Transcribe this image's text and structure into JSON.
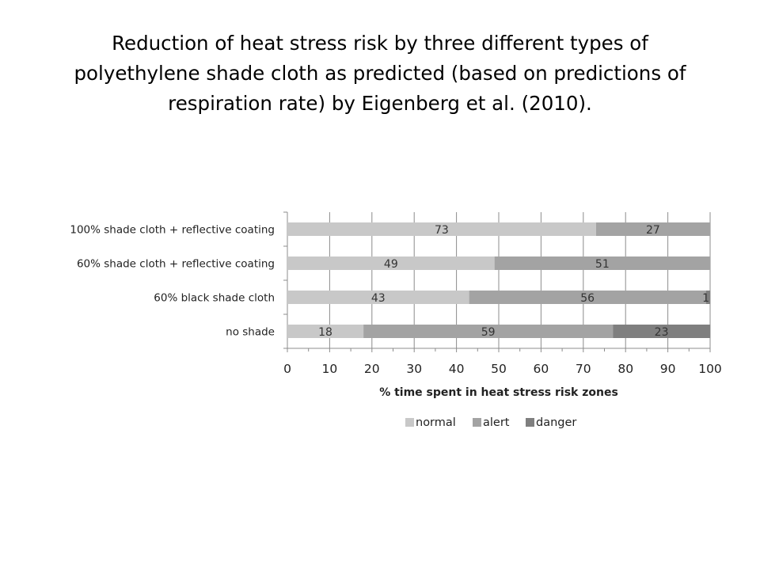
{
  "slide": {
    "title_lines": [
      "Reduction of heat stress risk by three different types of",
      "polyethylene shade cloth as predicted (based on predictions of",
      "respiration rate) by Eigenberg et al. (2010)."
    ]
  },
  "chart_data": {
    "type": "bar",
    "orientation": "horizontal",
    "stacked": true,
    "categories": [
      "100% shade cloth + reflective coating",
      "60% shade cloth + reflective coating",
      "60% black shade cloth",
      "no shade"
    ],
    "series": [
      {
        "name": "normal",
        "values": [
          73,
          49,
          43,
          18
        ],
        "color": "#c8c8c8"
      },
      {
        "name": "alert",
        "values": [
          27,
          51,
          56,
          59
        ],
        "color": "#a3a3a3"
      },
      {
        "name": "danger",
        "values": [
          0,
          0,
          1,
          23
        ],
        "color": "#7f7f7f"
      }
    ],
    "xlabel": "% time spent in heat stress risk zones",
    "xlim": [
      0,
      100
    ],
    "xticks": [
      0,
      10,
      20,
      30,
      40,
      50,
      60,
      70,
      80,
      90,
      100
    ],
    "grid": true,
    "legend_position": "bottom"
  }
}
